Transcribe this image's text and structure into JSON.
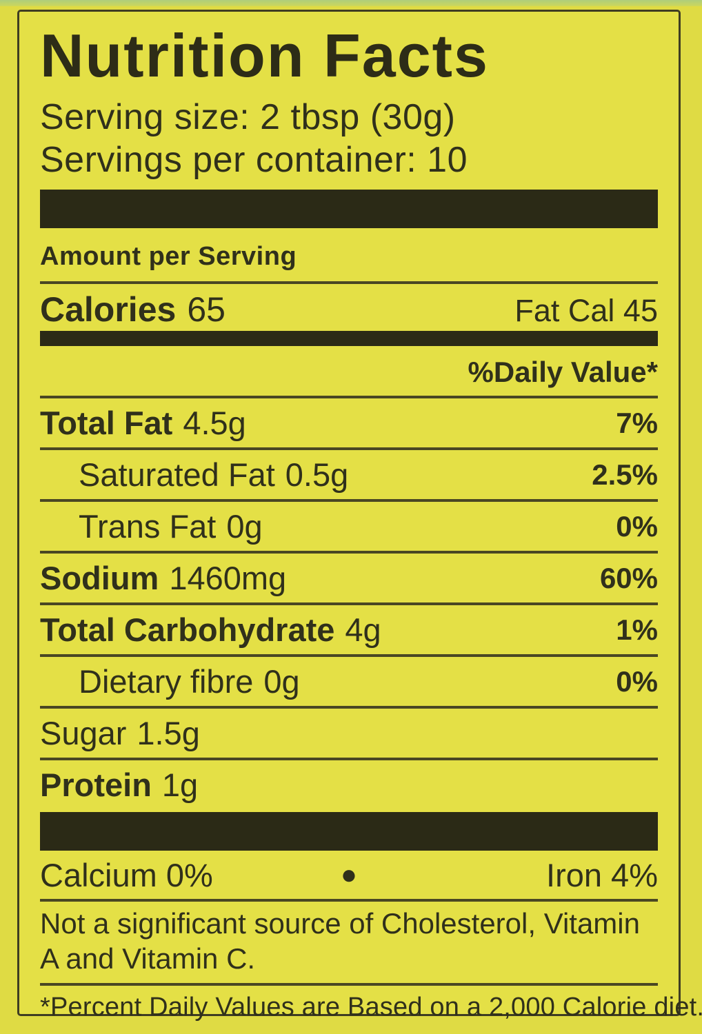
{
  "label": {
    "title": "Nutrition Facts",
    "serving_size": "Serving size: 2 tbsp (30g)",
    "servings_per_container": "Servings per container: 10",
    "amount_per_serving": "Amount per Serving",
    "calories_label": "Calories",
    "calories_value": "65",
    "fat_cal": "Fat Cal 45",
    "daily_value_header": "%Daily Value*",
    "rows": [
      {
        "name": "Total Fat",
        "amount": "4.5g",
        "dv": "7%"
      },
      {
        "name": "Saturated Fat",
        "amount": "0.5g",
        "dv": "2.5%"
      },
      {
        "name": "Trans Fat",
        "amount": "0g",
        "dv": "0%"
      },
      {
        "name": "Sodium",
        "amount": "1460mg",
        "dv": "60%"
      },
      {
        "name": "Total Carbohydrate",
        "amount": "4g",
        "dv": "1%"
      },
      {
        "name": "Dietary fibre",
        "amount": "0g",
        "dv": "0%"
      },
      {
        "name": "Sugar",
        "amount": "1.5g",
        "dv": ""
      },
      {
        "name": "Protein",
        "amount": "1g",
        "dv": ""
      }
    ],
    "minerals": {
      "calcium": "Calcium 0%",
      "bullet": "●",
      "iron": "Iron 4%"
    },
    "not_significant": "Not a significant source of Cholesterol, Vitamin A and Vitamin C.",
    "footnote": "*Percent Daily Values are Based on a 2,000 Calorie diet.",
    "colors": {
      "background": "#e4e046",
      "ink": "#30301b",
      "bar": "#2b2a16",
      "top_strip": "#b7d37a"
    }
  }
}
